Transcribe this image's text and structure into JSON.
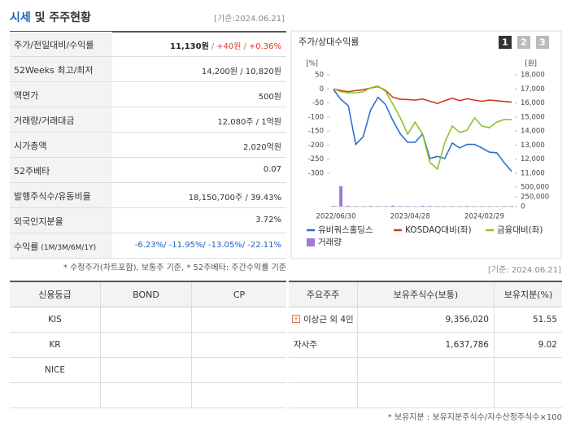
{
  "header": {
    "title_main": "시세",
    "title_rest": "및 주주현황",
    "base_date": "[기준:2024.06.21]"
  },
  "market_table": {
    "rows": [
      {
        "label": "주가/전일대비/수익률",
        "value": [
          "11,130원",
          "/",
          "+40원",
          "/",
          "+0.36%"
        ],
        "colors": [
          "#222222",
          "#888888",
          "#e0392b",
          "#888888",
          "#e0392b"
        ]
      },
      {
        "label": "52Weeks 최고/최저",
        "value": [
          "14,200원 / 10,820원"
        ]
      },
      {
        "label": "액면가",
        "value": [
          "500원"
        ]
      },
      {
        "label": "거래량/거래대금",
        "value": [
          "12,080주 / 1억원"
        ]
      },
      {
        "label": "시가총액",
        "value": [
          "2,020억원"
        ]
      },
      {
        "label": "52주베타",
        "value": [
          "0.07"
        ]
      },
      {
        "label": "발행주식수/유동비율",
        "value": [
          "18,150,700주 / 39.43%"
        ]
      },
      {
        "label": "외국인지분율",
        "value": [
          "3.72%"
        ]
      },
      {
        "label": "수익률",
        "sublabel": "(1M/3M/6M/1Y)",
        "value": [
          "-6.23%/ -11.95%/ -13.05%/ -22.11%"
        ],
        "colors": [
          "#1f5fbf"
        ]
      }
    ]
  },
  "footnote_market": "* 수정주가(차트포함), 보통주 기준, * 52주베타: 주간수익률 기준",
  "chart_data": {
    "type": "line",
    "title": "주가/상대수익률",
    "buttons": [
      "1",
      "2",
      "3"
    ],
    "y_label": "[%]",
    "y2_label": "[원]",
    "categories": [
      "2022/06/30",
      null,
      null,
      null,
      null,
      null,
      null,
      null,
      null,
      null,
      "2023/04/28",
      null,
      null,
      null,
      null,
      null,
      null,
      null,
      null,
      null,
      "2024/02/29",
      null,
      null,
      null,
      null
    ],
    "ylim": [
      -300,
      50
    ],
    "yticks": [
      50,
      0,
      -50,
      -100,
      -150,
      -200,
      -250,
      -300
    ],
    "y2lim": [
      11000,
      18000
    ],
    "y2ticks": [
      {
        "value": 18000,
        "label": "18,000"
      },
      {
        "value": 17000,
        "label": "17,000"
      },
      {
        "value": 16000,
        "label": "16,000"
      },
      {
        "value": 15000,
        "label": "15,000"
      },
      {
        "value": 14000,
        "label": "14,000"
      },
      {
        "value": 13000,
        "label": "13,000"
      },
      {
        "value": 12000,
        "label": "12,000"
      },
      {
        "value": 11000,
        "label": "11,000"
      }
    ],
    "y3lim": [
      0,
      500000
    ],
    "y3ticks": [
      {
        "value": 500000,
        "label": "500,000"
      },
      {
        "value": 250000,
        "label": "250,000"
      },
      0
    ],
    "series": [
      {
        "name": "유비쿼스홀딩스",
        "color": "#2e6fd1",
        "axis": "y2",
        "values": [
          16950,
          16250,
          15800,
          13050,
          13600,
          15500,
          16400,
          15900,
          14750,
          13800,
          13200,
          13200,
          13800,
          12050,
          12200,
          12050,
          13150,
          12800,
          13050,
          13050,
          12800,
          12500,
          12450,
          11750,
          11130
        ]
      },
      {
        "name": "KOSDAQ대비(좌)",
        "color": "#d13a1f",
        "values": [
          0,
          -6,
          -10,
          -6,
          -3,
          3,
          8,
          -5,
          -30,
          -37,
          -38,
          -40,
          -36,
          -44,
          -52,
          -42,
          -33,
          -42,
          -35,
          -40,
          -44,
          -40,
          -42,
          -45,
          -47
        ]
      },
      {
        "name": "금융대비(좌)",
        "color": "#8cc32a",
        "values": [
          0,
          -10,
          -14,
          -14,
          -10,
          4,
          10,
          -8,
          -54,
          -103,
          -161,
          -118,
          -161,
          -262,
          -285,
          -190,
          -132,
          -155,
          -147,
          -103,
          -132,
          -138,
          -118,
          -109,
          -109
        ]
      },
      {
        "name": "거래량",
        "color": "#a07ad6",
        "axis": "y3",
        "values": [
          15000,
          520000,
          20000,
          12000,
          10000,
          15000,
          12000,
          10000,
          25000,
          15000,
          12000,
          10000,
          20000,
          15000,
          12000,
          10000,
          12000,
          10000,
          15000,
          10000,
          12000,
          10000,
          10000,
          12000,
          12080
        ]
      }
    ]
  },
  "chart_base_date": "[기준: 2024.06.21]",
  "credit_table": {
    "header": [
      "신용등급",
      "BOND",
      "CP"
    ],
    "rows": [
      [
        "KIS"
      ],
      [
        "KR"
      ],
      [
        "NICE"
      ]
    ]
  },
  "holders_table": {
    "header": [
      "주요주주",
      "보유주식수(보통)",
      "보유지분(%)"
    ],
    "rows": [
      [
        "이상근 외 4인",
        "9,356,020",
        "51.55"
      ],
      [
        "자사주",
        "1,637,786",
        "9.02"
      ]
    ]
  },
  "footnote_holders": "* 보유지분 : 보유지분주식수/지수산정주식수×100"
}
